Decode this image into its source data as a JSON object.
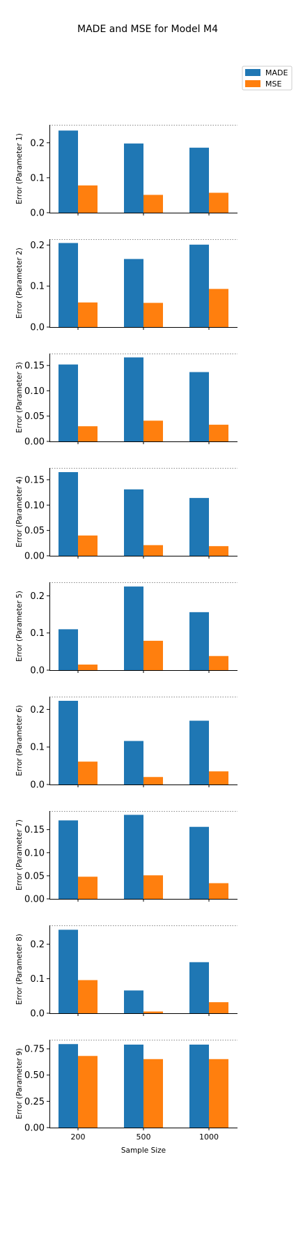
{
  "colors": {
    "made": "#1f77b4",
    "mse": "#ff7f0e",
    "grid": "#888888"
  },
  "legend": {
    "placement": "top-right",
    "entries": [
      "MADE",
      "MSE"
    ]
  },
  "chart_data": {
    "type": "bar",
    "title": "MADE and MSE for Model M4",
    "xlabel": "Sample Size",
    "categories": [
      "200",
      "500",
      "1000"
    ],
    "panels": [
      {
        "ylabel": "Error (Parameter 1)",
        "ylim": [
          0,
          0.2514
        ],
        "yticks": [
          "0.0",
          "0.1",
          "0.2"
        ],
        "ytick_values": [
          0,
          0.1,
          0.2
        ],
        "series": [
          {
            "name": "MADE",
            "values": [
              0.235,
              0.198,
              0.186
            ]
          },
          {
            "name": "MSE",
            "values": [
              0.078,
              0.051,
              0.057
            ]
          }
        ]
      },
      {
        "ylabel": "Error (Parameter 2)",
        "ylim": [
          0,
          0.2143
        ],
        "yticks": [
          "0.0",
          "0.1",
          "0.2"
        ],
        "ytick_values": [
          0,
          0.1,
          0.2
        ],
        "series": [
          {
            "name": "MADE",
            "values": [
              0.205,
              0.166,
              0.201
            ]
          },
          {
            "name": "MSE",
            "values": [
              0.06,
              0.059,
              0.093
            ]
          }
        ]
      },
      {
        "ylabel": "Error (Parameter 3)",
        "ylim": [
          0,
          0.1736
        ],
        "yticks": [
          "0.00",
          "0.05",
          "0.10",
          "0.15"
        ],
        "ytick_values": [
          0,
          0.05,
          0.1,
          0.15
        ],
        "series": [
          {
            "name": "MADE",
            "values": [
              0.152,
              0.166,
              0.137
            ]
          },
          {
            "name": "MSE",
            "values": [
              0.03,
              0.041,
              0.033
            ]
          }
        ]
      },
      {
        "ylabel": "Error (Parameter 4)",
        "ylim": [
          0,
          0.1733
        ],
        "yticks": [
          "0.00",
          "0.05",
          "0.10",
          "0.15"
        ],
        "ytick_values": [
          0,
          0.05,
          0.1,
          0.15
        ],
        "series": [
          {
            "name": "MADE",
            "values": [
              0.165,
              0.131,
              0.114
            ]
          },
          {
            "name": "MSE",
            "values": [
              0.04,
              0.021,
              0.019
            ]
          }
        ]
      },
      {
        "ylabel": "Error (Parameter 5)",
        "ylim": [
          0,
          0.2364
        ],
        "yticks": [
          "0.0",
          "0.1",
          "0.2"
        ],
        "ytick_values": [
          0,
          0.1,
          0.2
        ],
        "series": [
          {
            "name": "MADE",
            "values": [
              0.11,
              0.225,
              0.156
            ]
          },
          {
            "name": "MSE",
            "values": [
              0.015,
              0.079,
              0.038
            ]
          }
        ]
      },
      {
        "ylabel": "Error (Parameter 6)",
        "ylim": [
          0,
          0.2341
        ],
        "yticks": [
          "0.0",
          "0.1",
          "0.2"
        ],
        "ytick_values": [
          0,
          0.1,
          0.2
        ],
        "series": [
          {
            "name": "MADE",
            "values": [
              0.223,
              0.116,
              0.17
            ]
          },
          {
            "name": "MSE",
            "values": [
              0.061,
              0.02,
              0.035
            ]
          }
        ]
      },
      {
        "ylabel": "Error (Parameter 7)",
        "ylim": [
          0,
          0.1903
        ],
        "yticks": [
          "0.00",
          "0.05",
          "0.10",
          "0.15"
        ],
        "ytick_values": [
          0,
          0.05,
          0.1,
          0.15
        ],
        "series": [
          {
            "name": "MADE",
            "values": [
              0.17,
              0.182,
              0.156
            ]
          },
          {
            "name": "MSE",
            "values": [
              0.048,
              0.051,
              0.034
            ]
          }
        ]
      },
      {
        "ylabel": "Error (Parameter 8)",
        "ylim": [
          0,
          0.2547
        ],
        "yticks": [
          "0.0",
          "0.1",
          "0.2"
        ],
        "ytick_values": [
          0,
          0.1,
          0.2
        ],
        "series": [
          {
            "name": "MADE",
            "values": [
              0.242,
              0.066,
              0.148
            ]
          },
          {
            "name": "MSE",
            "values": [
              0.096,
              0.005,
              0.032
            ]
          }
        ]
      },
      {
        "ylabel": "Error (Parameter 9)",
        "ylim": [
          0,
          0.8364
        ],
        "yticks": [
          "0.00",
          "0.25",
          "0.50",
          "0.75"
        ],
        "ytick_values": [
          0,
          0.25,
          0.5,
          0.75
        ],
        "series": [
          {
            "name": "MADE",
            "values": [
              0.795,
              0.79,
              0.79
            ]
          },
          {
            "name": "MSE",
            "values": [
              0.682,
              0.652,
              0.652
            ]
          }
        ]
      }
    ]
  }
}
